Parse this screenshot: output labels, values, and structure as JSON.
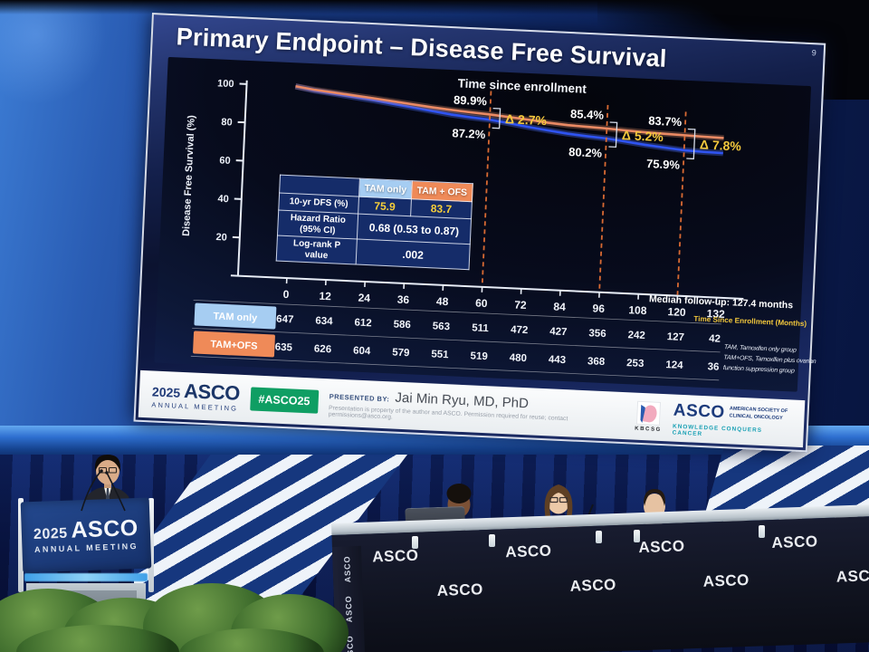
{
  "slide": {
    "number": "9",
    "title": "Primary Endpoint – Disease Free Survival",
    "stats_table": {
      "col_headers": [
        "TAM only",
        "TAM + OFS"
      ],
      "rows": [
        {
          "label": "10-yr DFS (%)",
          "values": [
            "75.9",
            "83.7"
          ]
        },
        {
          "label": "Hazard Ratio\n(95% CI)",
          "values": [
            "0.68 (0.53 to 0.87)"
          ]
        },
        {
          "label": "Log-rank P\nvalue",
          "values": [
            ".002"
          ]
        }
      ]
    }
  },
  "chart_data": {
    "type": "line",
    "title": "Time since enrollment",
    "xlabel": "Time Since Enrollment (Months)",
    "ylabel": "Disease Free Survival (%)",
    "xlim": [
      0,
      138
    ],
    "ylim": [
      0,
      100
    ],
    "grid": false,
    "legend_position": "none",
    "x_ticks": [
      0,
      12,
      24,
      36,
      48,
      60,
      72,
      84,
      96,
      108,
      120,
      132
    ],
    "y_ticks": [
      20,
      40,
      60,
      80,
      100
    ],
    "x": [
      0,
      6,
      12,
      18,
      24,
      30,
      36,
      42,
      48,
      54,
      60,
      66,
      72,
      78,
      84,
      90,
      96,
      102,
      108,
      114,
      120,
      126,
      132
    ],
    "series": [
      {
        "name": "TAM + OFS",
        "color": "#ea8a64",
        "glow": "rgba(242,150,110,0.28)",
        "values": [
          100,
          98.6,
          97.6,
          96.6,
          95.6,
          94.5,
          93.4,
          92.3,
          91.4,
          90.6,
          89.9,
          89.0,
          88.1,
          87.0,
          86.2,
          85.8,
          85.4,
          84.8,
          84.3,
          84.0,
          83.7,
          83.4,
          83.2
        ]
      },
      {
        "name": "TAM only",
        "color": "#2f54f2",
        "glow": "rgba(80,115,255,0.34)",
        "values": [
          100,
          98.2,
          97.0,
          95.8,
          94.6,
          93.2,
          91.8,
          90.4,
          89.0,
          88.0,
          87.2,
          85.8,
          84.3,
          83.0,
          81.8,
          80.9,
          80.2,
          79.0,
          77.8,
          76.8,
          75.9,
          75.5,
          75.3
        ]
      }
    ],
    "annotations": [
      {
        "month": 60,
        "upper": "89.9%",
        "lower": "87.2%",
        "delta": "Δ 2.7%"
      },
      {
        "month": 96,
        "upper": "85.4%",
        "lower": "80.2%",
        "delta": "Δ 5.2%"
      },
      {
        "month": 120,
        "upper": "83.7%",
        "lower": "75.9%",
        "delta": "Δ 7.8%"
      }
    ],
    "median_follow_up": "Median follow-up: 127.4 months",
    "footnote_lines": [
      "TAM, Tamoxifen only group",
      "TAM+OFS, Tamoxifen plus ovarian",
      "function suppression group"
    ],
    "at_risk": {
      "groups": [
        {
          "label": "TAM only",
          "chip_color": "#a6cdf2",
          "counts": [
            647,
            634,
            612,
            586,
            563,
            511,
            472,
            427,
            356,
            242,
            127,
            42
          ]
        },
        {
          "label": "TAM+OFS",
          "chip_color": "#ef8a58",
          "counts": [
            635,
            626,
            604,
            579,
            551,
            519,
            480,
            443,
            368,
            253,
            124,
            36
          ]
        }
      ]
    },
    "annotation_colors": {
      "delta": "#f3c83c",
      "dashed_line": "#d96a33",
      "value_label": "#ffffff"
    }
  },
  "footer": {
    "year": "2025",
    "brand": "ASCO",
    "brand_sub": "ANNUAL MEETING",
    "hashtag": "#ASCO25",
    "presented_by_label": "PRESENTED BY:",
    "presenter": "Jai Min Ryu, MD, PhD",
    "permission": "Presentation is property of the author and ASCO. Permission required for reuse; contact permissions@asco.org.",
    "kbcsg": "KBCSG",
    "asco_society_line1": "AMERICAN SOCIETY OF",
    "asco_society_line2": "CLINICAL ONCOLOGY",
    "asco_tagline": "KNOWLEDGE CONQUERS CANCER"
  },
  "stage": {
    "podium_year": "2025",
    "podium_brand": "ASCO",
    "podium_sub": "ANNUAL MEETING",
    "table_brand": "ASCO"
  }
}
